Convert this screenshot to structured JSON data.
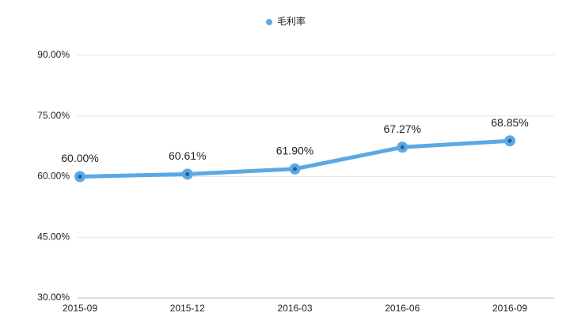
{
  "chart_data": {
    "type": "line",
    "categories": [
      "2015-09",
      "2015-12",
      "2016-03",
      "2016-06",
      "2016-09"
    ],
    "series": [
      {
        "name": "毛利率",
        "color": "#5aa9e6",
        "values": [
          60.0,
          60.61,
          61.9,
          67.27,
          68.85
        ],
        "value_labels": [
          "60.00%",
          "60.61%",
          "61.90%",
          "67.27%",
          "68.85%"
        ]
      }
    ],
    "ylim": [
      30,
      90
    ],
    "yticks": [
      {
        "value": 30,
        "label": "30.00%"
      },
      {
        "value": 45,
        "label": "45.00%"
      },
      {
        "value": 60,
        "label": "60.00%"
      },
      {
        "value": 75,
        "label": "75.00%"
      },
      {
        "value": 90,
        "label": "90.00%"
      }
    ],
    "grid": true,
    "legend": "top"
  }
}
